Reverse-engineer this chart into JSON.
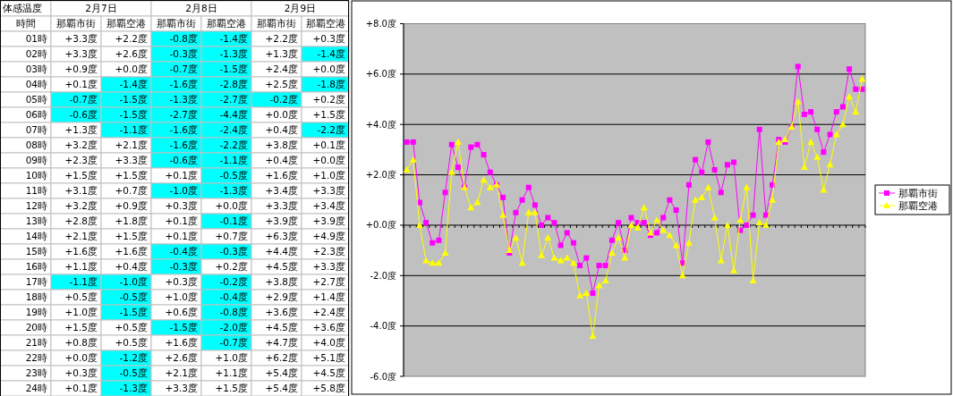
{
  "chart_data": [
    {
      "type": "heatmap",
      "title": "体感温度",
      "ylabel": "時間",
      "annotations": [
        "2月7日",
        "2月8日",
        "2月9日"
      ],
      "categories": [
        "那覇市街",
        "那覇空港",
        "那覇市街",
        "那覇空港",
        "那覇市街",
        "那覇空港"
      ],
      "y_categories": [
        "01時",
        "02時",
        "03時",
        "04時",
        "05時",
        "06時",
        "07時",
        "08時",
        "09時",
        "10時",
        "11時",
        "12時",
        "13時",
        "14時",
        "15時",
        "16時",
        "17時",
        "18時",
        "19時",
        "20時",
        "21時",
        "22時",
        "23時",
        "24時"
      ],
      "cells": [
        [
          3.3,
          2.2,
          -0.8,
          -1.4,
          2.2,
          0.3
        ],
        [
          3.3,
          2.6,
          -0.3,
          -1.3,
          1.3,
          -1.4
        ],
        [
          0.9,
          0.0,
          -0.7,
          -1.5,
          2.4,
          0.0
        ],
        [
          0.1,
          -1.4,
          -1.6,
          -2.8,
          2.5,
          -1.8
        ],
        [
          -0.7,
          -1.5,
          -1.3,
          -2.7,
          -0.2,
          0.2
        ],
        [
          -0.6,
          -1.5,
          -2.7,
          -4.4,
          0.0,
          1.5
        ],
        [
          1.3,
          -1.1,
          -1.6,
          -2.4,
          0.4,
          -2.2
        ],
        [
          3.2,
          2.1,
          -1.6,
          -2.2,
          3.8,
          0.1
        ],
        [
          2.3,
          3.3,
          -0.6,
          -1.1,
          0.4,
          0.0
        ],
        [
          1.5,
          1.5,
          0.1,
          -0.5,
          1.6,
          1.0
        ],
        [
          3.1,
          0.7,
          -1.0,
          -1.3,
          3.4,
          3.3
        ],
        [
          3.2,
          0.9,
          0.3,
          0.0,
          3.3,
          3.4
        ],
        [
          2.8,
          1.8,
          0.1,
          -0.1,
          3.9,
          3.9
        ],
        [
          2.1,
          1.5,
          0.1,
          0.7,
          6.3,
          4.9
        ],
        [
          1.6,
          1.6,
          -0.4,
          -0.3,
          4.4,
          2.3
        ],
        [
          1.1,
          0.4,
          -0.3,
          0.2,
          4.5,
          3.3
        ],
        [
          -1.1,
          -1.0,
          0.3,
          -0.2,
          3.8,
          2.7
        ],
        [
          0.5,
          -0.5,
          1.0,
          -0.4,
          2.9,
          1.4
        ],
        [
          1.0,
          -1.5,
          0.6,
          -0.8,
          3.6,
          2.4
        ],
        [
          1.5,
          0.5,
          -1.5,
          -2.0,
          4.5,
          3.6
        ],
        [
          0.8,
          0.5,
          1.6,
          -0.7,
          4.7,
          4.0
        ],
        [
          0.0,
          -1.2,
          2.6,
          1.0,
          6.2,
          5.1
        ],
        [
          0.3,
          -0.5,
          2.1,
          1.1,
          5.4,
          4.5
        ],
        [
          0.1,
          -1.3,
          3.3,
          1.5,
          5.4,
          5.8
        ]
      ],
      "cell_labels": [
        [
          "+3.3度",
          "+2.2度",
          "-0.8度",
          "-1.4度",
          "+2.2度",
          "+0.3度"
        ],
        [
          "+3.3度",
          "+2.6度",
          "-0.3度",
          "-1.3度",
          "+1.3度",
          "-1.4度"
        ],
        [
          "+0.9度",
          "+0.0度",
          "-0.7度",
          "-1.5度",
          "+2.4度",
          "+0.0度"
        ],
        [
          "+0.1度",
          "-1.4度",
          "-1.6度",
          "-2.8度",
          "+2.5度",
          "-1.8度"
        ],
        [
          "-0.7度",
          "-1.5度",
          "-1.3度",
          "-2.7度",
          "-0.2度",
          "+0.2度"
        ],
        [
          "-0.6度",
          "-1.5度",
          "-2.7度",
          "-4.4度",
          "+0.0度",
          "+1.5度"
        ],
        [
          "+1.3度",
          "-1.1度",
          "-1.6度",
          "-2.4度",
          "+0.4度",
          "-2.2度"
        ],
        [
          "+3.2度",
          "+2.1度",
          "-1.6度",
          "-2.2度",
          "+3.8度",
          "+0.1度"
        ],
        [
          "+2.3度",
          "+3.3度",
          "-0.6度",
          "-1.1度",
          "+0.4度",
          "+0.0度"
        ],
        [
          "+1.5度",
          "+1.5度",
          "+0.1度",
          "-0.5度",
          "+1.6度",
          "+1.0度"
        ],
        [
          "+3.1度",
          "+0.7度",
          "-1.0度",
          "-1.3度",
          "+3.4度",
          "+3.3度"
        ],
        [
          "+3.2度",
          "+0.9度",
          "+0.3度",
          "+0.0度",
          "+3.3度",
          "+3.4度"
        ],
        [
          "+2.8度",
          "+1.8度",
          "+0.1度",
          "-0.1度",
          "+3.9度",
          "+3.9度"
        ],
        [
          "+2.1度",
          "+1.5度",
          "+0.1度",
          "+0.7度",
          "+6.3度",
          "+4.9度"
        ],
        [
          "+1.6度",
          "+1.6度",
          "-0.4度",
          "-0.3度",
          "+4.4度",
          "+2.3度"
        ],
        [
          "+1.1度",
          "+0.4度",
          "-0.3度",
          "+0.2度",
          "+4.5度",
          "+3.3度"
        ],
        [
          "-1.1度",
          "-1.0度",
          "+0.3度",
          "-0.2度",
          "+3.8度",
          "+2.7度"
        ],
        [
          "+0.5度",
          "-0.5度",
          "+1.0度",
          "-0.4度",
          "+2.9度",
          "+1.4度"
        ],
        [
          "+1.0度",
          "-1.5度",
          "+0.6度",
          "-0.8度",
          "+3.6度",
          "+2.4度"
        ],
        [
          "+1.5度",
          "+0.5度",
          "-1.5度",
          "-2.0度",
          "+4.5度",
          "+3.6度"
        ],
        [
          "+0.8度",
          "+0.5度",
          "+1.6度",
          "-0.7度",
          "+4.7度",
          "+4.0度"
        ],
        [
          "+0.0度",
          "-1.2度",
          "+2.6度",
          "+1.0度",
          "+6.2度",
          "+5.1度"
        ],
        [
          "+0.3度",
          "-0.5度",
          "+2.1度",
          "+1.1度",
          "+5.4度",
          "+4.5度"
        ],
        [
          "+0.1度",
          "-1.3度",
          "+3.3度",
          "+1.5度",
          "+5.4度",
          "+5.8度"
        ]
      ]
    },
    {
      "type": "line",
      "categories": [
        null,
        null,
        null,
        null,
        null,
        null,
        null,
        null,
        null,
        null,
        null,
        null,
        null,
        null,
        null,
        null,
        null,
        null,
        null,
        null,
        null,
        null,
        null,
        null,
        null,
        null,
        null,
        null,
        null,
        null,
        null,
        null,
        null,
        null,
        null,
        null,
        null,
        null,
        null,
        null,
        null,
        null,
        null,
        null,
        null,
        null,
        null,
        null,
        null,
        null,
        null,
        null,
        null,
        null,
        null,
        null,
        null,
        null,
        null,
        null,
        null,
        null,
        null,
        null,
        null,
        null,
        null,
        null,
        null,
        null,
        null,
        null
      ],
      "series": [
        {
          "name": "那覇市街",
          "color": "#ff00ff",
          "marker": "square",
          "values": [
            3.3,
            3.3,
            0.9,
            0.1,
            -0.7,
            -0.6,
            1.3,
            3.2,
            2.3,
            1.5,
            3.1,
            3.2,
            2.8,
            2.1,
            1.6,
            1.1,
            -1.1,
            0.5,
            1.0,
            1.5,
            0.8,
            0.0,
            0.3,
            0.1,
            -0.8,
            -0.3,
            -0.7,
            -1.6,
            -1.3,
            -2.7,
            -1.6,
            -1.6,
            -0.6,
            0.1,
            -1.0,
            0.3,
            0.1,
            0.1,
            -0.4,
            -0.3,
            0.3,
            1.0,
            0.6,
            -1.5,
            1.6,
            2.6,
            2.1,
            3.3,
            2.2,
            1.3,
            2.4,
            2.5,
            -0.2,
            0.0,
            0.4,
            3.8,
            0.4,
            1.6,
            3.4,
            3.3,
            3.9,
            6.3,
            4.4,
            4.5,
            3.8,
            2.9,
            3.6,
            4.5,
            4.7,
            6.2,
            5.4,
            5.4
          ]
        },
        {
          "name": "那覇空港",
          "color": "#ffff00",
          "marker": "triangle",
          "values": [
            2.2,
            2.6,
            0.0,
            -1.4,
            -1.5,
            -1.5,
            -1.1,
            2.1,
            3.3,
            1.5,
            0.7,
            0.9,
            1.8,
            1.5,
            1.6,
            0.4,
            -1.0,
            -0.5,
            -1.5,
            0.5,
            0.5,
            -1.2,
            -0.5,
            -1.3,
            -1.4,
            -1.3,
            -1.5,
            -2.8,
            -2.7,
            -4.4,
            -2.4,
            -2.2,
            -1.1,
            -0.5,
            -1.3,
            0.0,
            -0.1,
            0.7,
            -0.3,
            0.2,
            -0.2,
            -0.4,
            -0.8,
            -2.0,
            -0.7,
            1.0,
            1.1,
            1.5,
            0.3,
            -1.4,
            0.0,
            -1.8,
            0.2,
            1.5,
            -2.2,
            0.1,
            0.0,
            1.0,
            3.3,
            3.4,
            3.9,
            4.9,
            2.3,
            3.3,
            2.7,
            1.4,
            2.4,
            3.6,
            4.0,
            5.1,
            4.5,
            5.8
          ]
        }
      ],
      "ylim": [
        -6,
        8
      ],
      "yticks": [
        {
          "value": -6,
          "label": "-6.0度"
        },
        {
          "value": -4,
          "label": "-4.0度"
        },
        {
          "value": -2,
          "label": "-2.0度"
        },
        {
          "value": 0,
          "label": "+0.0度"
        },
        {
          "value": 2,
          "label": "+2.0度"
        },
        {
          "value": 4,
          "label": "+4.0度"
        },
        {
          "value": 6,
          "label": "+6.0度"
        },
        {
          "value": 8,
          "label": "+8.0度"
        }
      ],
      "grid": "y",
      "legend": "right"
    }
  ]
}
